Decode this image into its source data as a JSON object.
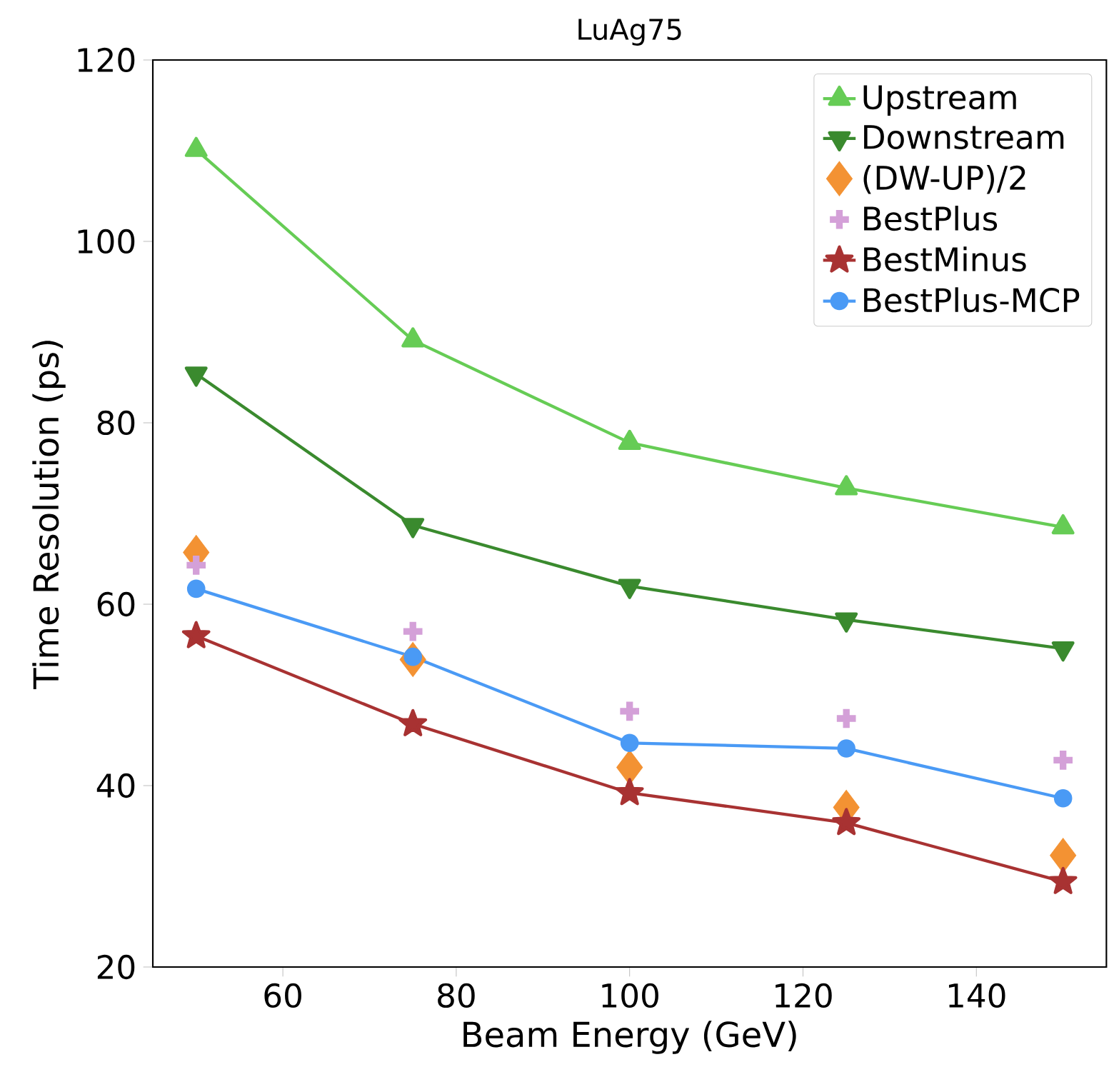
{
  "chart_data": {
    "type": "line",
    "title": "LuAg75",
    "xlabel": "Beam Energy  (GeV)",
    "ylabel": "Time Resolution  (ps)",
    "x": [
      50,
      75,
      100,
      125,
      150
    ],
    "xlim": [
      45,
      155
    ],
    "xticks": [
      60,
      80,
      100,
      120,
      140
    ],
    "ylim": [
      20,
      120
    ],
    "yticks": [
      20,
      40,
      60,
      80,
      100,
      120
    ],
    "legend": "top right",
    "series": [
      {
        "name": "Upstream",
        "color": "#66cc55",
        "marker": "triangle",
        "values": [
          110.1,
          89.1,
          77.8,
          72.8,
          68.5
        ]
      },
      {
        "name": "Downstream",
        "color": "#3a8a2e",
        "marker": "triangle-down",
        "values": [
          85.4,
          68.7,
          62.0,
          58.3,
          55.1
        ]
      },
      {
        "name": "(DW-UP)/2",
        "color": "#f39233",
        "type": "scatter",
        "marker": "diamond",
        "values": [
          65.7,
          53.9,
          42.0,
          37.6,
          32.3
        ]
      },
      {
        "name": "BestPlus",
        "color": "#d4a0d8",
        "type": "scatter",
        "marker": "cross",
        "values": [
          64.3,
          57.0,
          48.2,
          47.4,
          42.8
        ]
      },
      {
        "name": "BestMinus",
        "color": "#a83232",
        "marker": "star",
        "values": [
          56.5,
          46.8,
          39.2,
          35.9,
          29.4
        ]
      },
      {
        "name": "BestPlus-MCP",
        "color": "#4a9af5",
        "marker": "circle",
        "values": [
          61.7,
          54.2,
          44.7,
          44.1,
          38.6
        ]
      }
    ]
  }
}
